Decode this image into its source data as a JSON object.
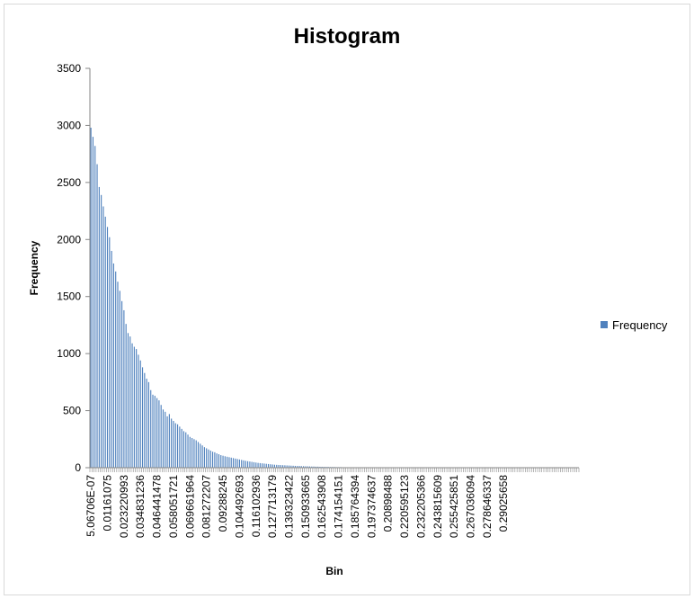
{
  "chart_data": {
    "type": "bar",
    "title": "Histogram",
    "xlabel": "Bin",
    "ylabel": "Frequency",
    "ylim": [
      0,
      3500
    ],
    "yticks": [
      0,
      500,
      1000,
      1500,
      2000,
      2500,
      3000,
      3500
    ],
    "grid": false,
    "legend": {
      "position": "right",
      "entries": [
        "Frequency"
      ]
    },
    "series": [
      {
        "name": "Frequency",
        "color": "#4f81bd",
        "values": [
          2980,
          2900,
          2820,
          2660,
          2460,
          2390,
          2290,
          2200,
          2110,
          2020,
          1900,
          1790,
          1720,
          1630,
          1550,
          1460,
          1380,
          1260,
          1180,
          1150,
          1090,
          1060,
          1040,
          990,
          940,
          880,
          830,
          780,
          750,
          680,
          640,
          630,
          610,
          590,
          550,
          510,
          490,
          450,
          470,
          430,
          410,
          390,
          380,
          360,
          340,
          320,
          310,
          290,
          270,
          260,
          250,
          240,
          225,
          210,
          195,
          180,
          170,
          160,
          150,
          140,
          135,
          125,
          118,
          110,
          105,
          100,
          96,
          92,
          88,
          84,
          80,
          76,
          72,
          68,
          64,
          60,
          57,
          54,
          51,
          48,
          45,
          42,
          40,
          38,
          36,
          34,
          32,
          30,
          28,
          26,
          25,
          24,
          23,
          22,
          21,
          20,
          19,
          18,
          17,
          16,
          15,
          15,
          14,
          13,
          12,
          12,
          11,
          10,
          10,
          9,
          9,
          8,
          8,
          7,
          7,
          7,
          6,
          6,
          6,
          5,
          5,
          5,
          4,
          4,
          4,
          4,
          3,
          3,
          3,
          3,
          3,
          3,
          2,
          2,
          2,
          2,
          2,
          2,
          2,
          2,
          2,
          2,
          2,
          2,
          1,
          1,
          1,
          1,
          1,
          1,
          1,
          1,
          1,
          1,
          1,
          1,
          1,
          1,
          1,
          1,
          1,
          1,
          1,
          1,
          1,
          1,
          1,
          1,
          1,
          1,
          1,
          1,
          1,
          1,
          1,
          1,
          1,
          1,
          1,
          1,
          1,
          1,
          1,
          1,
          1,
          1,
          1,
          1,
          1,
          1,
          1,
          1,
          1,
          1,
          1,
          1,
          1,
          1,
          1,
          1,
          1,
          1,
          1,
          1,
          1,
          1,
          1,
          1,
          1,
          1,
          1,
          1,
          1,
          1,
          1,
          1,
          1,
          1,
          1,
          1,
          1,
          1,
          1,
          1,
          1,
          1,
          1,
          1,
          1,
          1,
          1,
          1,
          1,
          1,
          1,
          1,
          1
        ]
      }
    ],
    "x_tick_labels": [
      "5.06706E-07",
      "0.01161075",
      "0.023220993",
      "0.034831236",
      "0.046441478",
      "0.058051721",
      "0.069661964",
      "0.081272207",
      "0.09288245",
      "0.104492693",
      "0.116102936",
      "0.127713179",
      "0.139323422",
      "0.150933665",
      "0.162543908",
      "0.174154151",
      "0.185764394",
      "0.197374637",
      "0.20898488",
      "0.220595123",
      "0.232205366",
      "0.243815609",
      "0.255425851",
      "0.267036094",
      "0.278646337",
      "0.29025658"
    ]
  }
}
